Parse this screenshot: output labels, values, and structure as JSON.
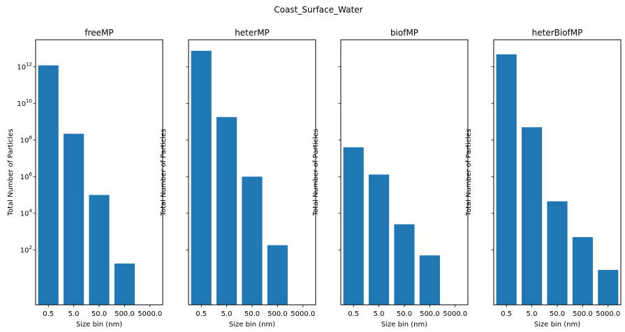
{
  "suptitle": "Coast_Surface_Water",
  "style": {
    "bar_color": "#1f77b4"
  },
  "chart_data": [
    {
      "type": "bar",
      "title": "freeMP",
      "xlabel": "Size bin (nm)",
      "ylabel": "Total Number of Particles",
      "yscale": "log",
      "ylim": [
        0.1,
        30000000000000.0
      ],
      "categories": [
        "0.5",
        "5.0",
        "50.0",
        "500.0",
        "5000.0"
      ],
      "values": [
        1200000000000.0,
        220000000.0,
        100000.0,
        18,
        0
      ],
      "ytick_labels": [
        {
          "base": "10",
          "exp": "2",
          "value": 100
        },
        {
          "base": "10",
          "exp": "4",
          "value": 10000
        },
        {
          "base": "10",
          "exp": "6",
          "value": 1000000
        },
        {
          "base": "10",
          "exp": "8",
          "value": 100000000
        },
        {
          "base": "10",
          "exp": "10",
          "value": 10000000000
        },
        {
          "base": "10",
          "exp": "12",
          "value": 1000000000000
        }
      ]
    },
    {
      "type": "bar",
      "title": "heterMP",
      "xlabel": "Size bin (nm)",
      "ylabel": "Total Number of Particles",
      "yscale": "log",
      "ylim": [
        0.1,
        30000000000000.0
      ],
      "categories": [
        "0.5",
        "5.0",
        "50.0",
        "500.0",
        "5000.0"
      ],
      "values": [
        7500000000000.0,
        1800000000.0,
        1000000.0,
        180,
        0
      ]
    },
    {
      "type": "bar",
      "title": "biofMP",
      "xlabel": "Size bin (nm)",
      "ylabel": "Total Number of Particles",
      "yscale": "log",
      "ylim": [
        0.1,
        30000000000000.0
      ],
      "categories": [
        "0.5",
        "5.0",
        "50.0",
        "500.0",
        "5000.0"
      ],
      "values": [
        40000000.0,
        1300000.0,
        2500.0,
        50,
        0
      ]
    },
    {
      "type": "bar",
      "title": "heterBiofMP",
      "xlabel": "Size bin (nm)",
      "ylabel": "Total Number of Particles",
      "yscale": "log",
      "ylim": [
        0.1,
        30000000000000.0
      ],
      "categories": [
        "0.5",
        "5.0",
        "50.0",
        "500.0",
        "5000.0"
      ],
      "values": [
        4800000000000.0,
        500000000.0,
        45000.0,
        500.0,
        8
      ]
    }
  ]
}
